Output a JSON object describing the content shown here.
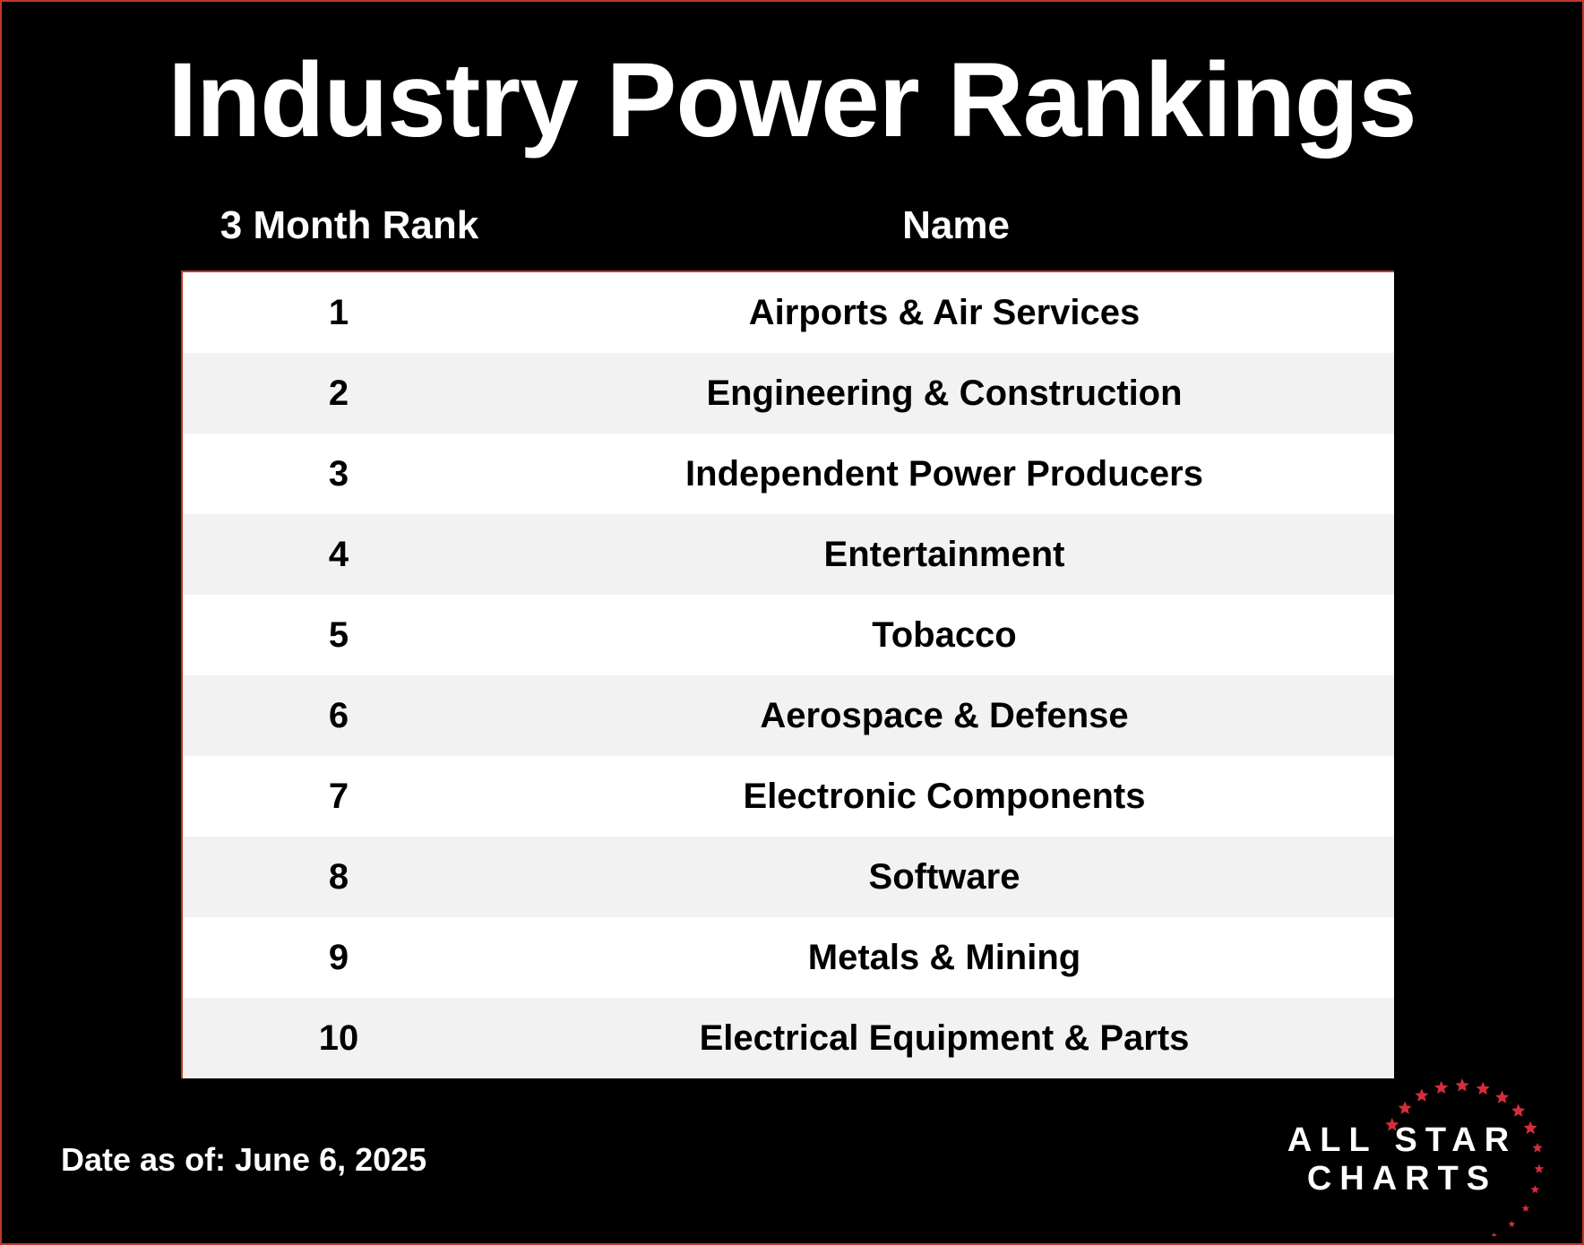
{
  "title": "Industry Power Rankings",
  "columns": {
    "rank": "3 Month Rank",
    "name": "Name"
  },
  "rows": [
    {
      "rank": "1",
      "name": "Airports & Air Services"
    },
    {
      "rank": "2",
      "name": "Engineering & Construction"
    },
    {
      "rank": "3",
      "name": "Independent Power Producers"
    },
    {
      "rank": "4",
      "name": "Entertainment"
    },
    {
      "rank": "5",
      "name": "Tobacco"
    },
    {
      "rank": "6",
      "name": "Aerospace & Defense"
    },
    {
      "rank": "7",
      "name": "Electronic Components"
    },
    {
      "rank": "8",
      "name": "Software"
    },
    {
      "rank": "9",
      "name": "Metals & Mining"
    },
    {
      "rank": "10",
      "name": "Electrical Equipment & Parts"
    }
  ],
  "footer": {
    "date": "Date as of: June 6, 2025"
  },
  "logo": {
    "line1": "ALL STAR",
    "line2": "CHARTS",
    "icon": "star-ring-icon"
  },
  "colors": {
    "accent": "#d32f3a",
    "row_alt": "#f2f2f2",
    "background": "#000000"
  }
}
